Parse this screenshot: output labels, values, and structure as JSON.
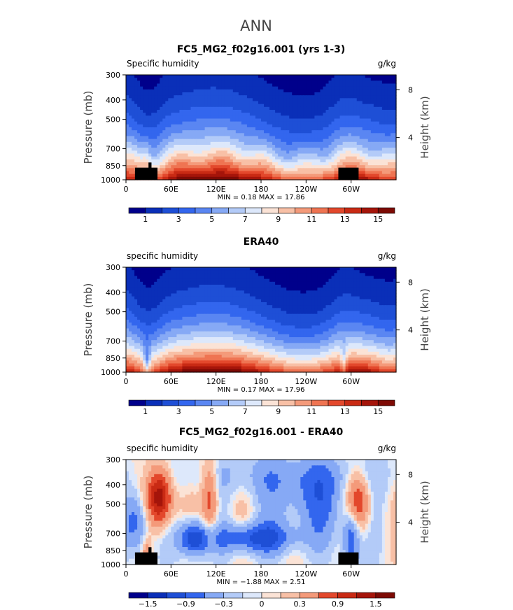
{
  "figure_title": "ANN",
  "chart_data": [
    {
      "type": "heatmap",
      "title": "FC5_MG2_f02g16.001 (yrs 1-3)",
      "variable_label": "Specific humidity",
      "units": "g/kg",
      "ylabel": "Pressure (mb)",
      "right_label": "Height (km)",
      "x_ticks": [
        "0",
        "60E",
        "120E",
        "180",
        "120W",
        "60W"
      ],
      "y_ticks": [
        "300",
        "400",
        "500",
        "700",
        "850",
        "1000"
      ],
      "right_ticks": [
        "8",
        "4"
      ],
      "stats": "MIN =    0.18   MAX =   17.86",
      "min": 0.18,
      "max": 17.86,
      "colorbar_labels": [
        "1",
        "3",
        "5",
        "7",
        "9",
        "11",
        "13",
        "15"
      ],
      "colorbar_levels": [
        0,
        1,
        2,
        3,
        4,
        5,
        6,
        7,
        8,
        9,
        10,
        11,
        12,
        13,
        14,
        15,
        16
      ],
      "field": "model"
    },
    {
      "type": "heatmap",
      "title": "ERA40",
      "variable_label": "specific humidity",
      "units": "g/kg",
      "ylabel": "Pressure (mb)",
      "right_label": "Height (km)",
      "x_ticks": [
        "0",
        "60E",
        "120E",
        "180",
        "120W",
        "60W"
      ],
      "y_ticks": [
        "300",
        "400",
        "500",
        "700",
        "850",
        "1000"
      ],
      "right_ticks": [
        "8",
        "4"
      ],
      "stats": "MIN =    0.17   MAX =   17.96",
      "min": 0.17,
      "max": 17.96,
      "colorbar_labels": [
        "1",
        "3",
        "5",
        "7",
        "9",
        "11",
        "13",
        "15"
      ],
      "colorbar_levels": [
        0,
        1,
        2,
        3,
        4,
        5,
        6,
        7,
        8,
        9,
        10,
        11,
        12,
        13,
        14,
        15,
        16
      ],
      "field": "obs"
    },
    {
      "type": "heatmap",
      "title": "FC5_MG2_f02g16.001 - ERA40",
      "variable_label": "specific humidity",
      "units": "g/kg",
      "ylabel": "Pressure (mb)",
      "right_label": "Height (km)",
      "x_ticks": [
        "0",
        "60E",
        "120E",
        "180",
        "120W",
        "60W"
      ],
      "y_ticks": [
        "300",
        "400",
        "500",
        "700",
        "850",
        "1000"
      ],
      "right_ticks": [
        "8",
        "4"
      ],
      "stats": "MIN =  −1.88   MAX =    2.51",
      "min": -1.88,
      "max": 2.51,
      "colorbar_labels": [
        "−1.5",
        "−0.9",
        "−0.3",
        "0",
        "0.3",
        "0.9",
        "1.5"
      ],
      "colorbar_levels": [
        -1.8,
        -1.5,
        -1.2,
        -0.9,
        -0.6,
        -0.3,
        -0.1,
        0,
        0.1,
        0.3,
        0.6,
        0.9,
        1.2,
        1.5,
        1.8
      ],
      "field": "diff"
    }
  ],
  "palette": [
    "#00008b",
    "#0a2fb8",
    "#1e4fd6",
    "#3366ee",
    "#5a86f2",
    "#86a9f5",
    "#b3cbf8",
    "#dde8fb",
    "#fbe3d6",
    "#f8c0a6",
    "#f49a7a",
    "#ef7452",
    "#e3482c",
    "#c92a14",
    "#a5150a",
    "#7d0a04"
  ]
}
